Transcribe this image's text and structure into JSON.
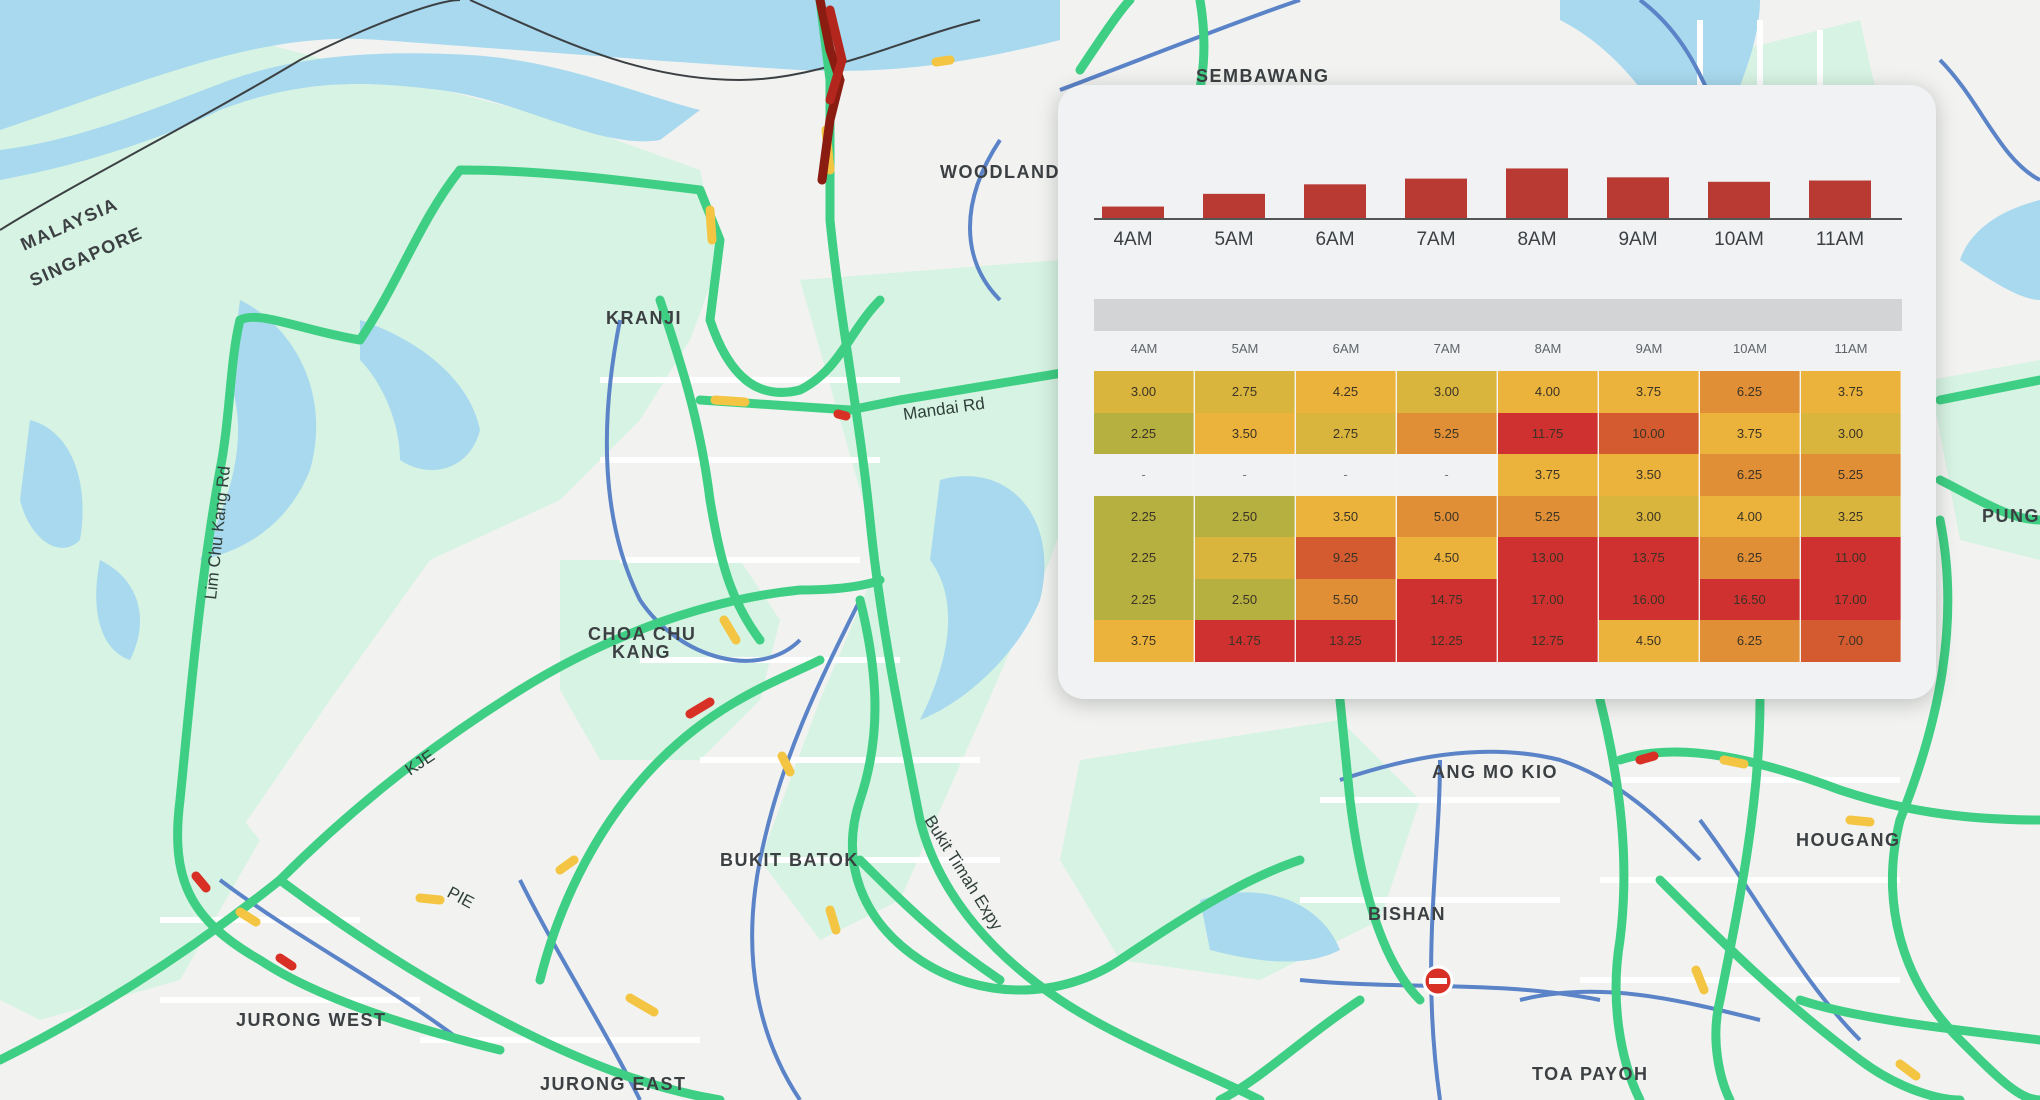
{
  "map": {
    "places": [
      {
        "key": "sembawang",
        "label": "SEMBAWANG"
      },
      {
        "key": "woodlands",
        "label": "WOODLANDS"
      },
      {
        "key": "kranji",
        "label": "KRANJI"
      },
      {
        "key": "choa_chu_kang_1",
        "label": "CHOA CHU"
      },
      {
        "key": "choa_chu_kang_2",
        "label": "KANG"
      },
      {
        "key": "bukit_batok",
        "label": "BUKIT BATOK"
      },
      {
        "key": "jurong_west",
        "label": "JURONG WEST"
      },
      {
        "key": "jurong_east",
        "label": "JURONG EAST"
      },
      {
        "key": "ang_mo_kio",
        "label": "ANG MO KIO"
      },
      {
        "key": "bishan",
        "label": "BISHAN"
      },
      {
        "key": "toa_payoh",
        "label": "TOA PAYOH"
      },
      {
        "key": "hougang",
        "label": "HOUGANG"
      },
      {
        "key": "punggol",
        "label": "PUNG"
      },
      {
        "key": "malaysia",
        "label": "MALAYSIA"
      },
      {
        "key": "singapore",
        "label": "SINGAPORE"
      }
    ],
    "roads": [
      {
        "key": "mandai",
        "label": "Mandai Rd"
      },
      {
        "key": "lim_chu_kang",
        "label": "Lim Chu Kang Rd"
      },
      {
        "key": "kje",
        "label": "KJE"
      },
      {
        "key": "pie",
        "label": "PIE"
      },
      {
        "key": "bte",
        "label": "Bukit Timah Expy"
      }
    ],
    "colors": {
      "water": "#a8d9ee",
      "park": "#d7f3e3",
      "land": "#f2f3f1",
      "road_minor": "#ffffff",
      "road_arterial": "#5b83c7",
      "traffic_free": "#3fcf84",
      "traffic_slow": "#f4c542",
      "traffic_jam": "#d93025",
      "traffic_heavy": "#8a1c12"
    },
    "icons": [
      "road-closed-icon"
    ]
  },
  "chart_data": [
    {
      "type": "bar",
      "categories": [
        "4AM",
        "5AM",
        "6AM",
        "7AM",
        "8AM",
        "9AM",
        "10AM",
        "11AM"
      ],
      "values": [
        1.8,
        3.8,
        5.3,
        6.2,
        7.8,
        6.4,
        5.7,
        5.9
      ],
      "ylim": [
        0,
        8.5
      ],
      "color": "#b83a32",
      "title": "",
      "xlabel": "",
      "ylabel": ""
    },
    {
      "type": "heatmap",
      "columns": [
        "4AM",
        "5AM",
        "6AM",
        "7AM",
        "8AM",
        "9AM",
        "10AM",
        "11AM"
      ],
      "rows": [
        [
          "3.00",
          "2.75",
          "4.25",
          "3.00",
          "4.00",
          "3.75",
          "6.25",
          "3.75"
        ],
        [
          "2.25",
          "3.50",
          "2.75",
          "5.25",
          "11.75",
          "10.00",
          "3.75",
          "3.00"
        ],
        [
          "-",
          "-",
          "-",
          "-",
          "3.75",
          "3.50",
          "6.25",
          "5.25"
        ],
        [
          "2.25",
          "2.50",
          "3.50",
          "5.00",
          "5.25",
          "3.00",
          "4.00",
          "3.25"
        ],
        [
          "2.25",
          "2.75",
          "9.25",
          "4.50",
          "13.00",
          "13.75",
          "6.25",
          "11.00"
        ],
        [
          "2.25",
          "2.50",
          "5.50",
          "14.75",
          "17.00",
          "16.00",
          "16.50",
          "17.00"
        ],
        [
          "3.75",
          "14.75",
          "13.25",
          "12.25",
          "12.75",
          "4.50",
          "6.25",
          "7.00"
        ]
      ],
      "title": ""
    }
  ]
}
